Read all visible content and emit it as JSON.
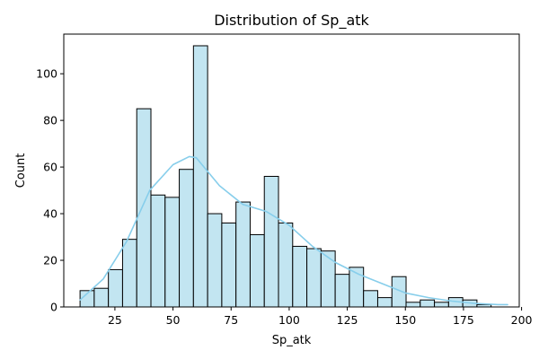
{
  "chart_data": {
    "type": "bar",
    "title": "Distribution of Sp_atk",
    "xlabel": "Sp_atk",
    "ylabel": "Count",
    "xlim": [
      3,
      199
    ],
    "ylim": [
      0,
      117
    ],
    "x_ticks": [
      25,
      50,
      75,
      100,
      125,
      150,
      175,
      200
    ],
    "y_ticks": [
      0,
      20,
      40,
      60,
      80,
      100
    ],
    "bin_start": 10,
    "bin_width": 6.1,
    "values": [
      7,
      8,
      16,
      29,
      85,
      48,
      47,
      59,
      112,
      40,
      36,
      45,
      31,
      56,
      36,
      26,
      25,
      24,
      14,
      17,
      7,
      4,
      13,
      2,
      3,
      2,
      4,
      3,
      1,
      0
    ],
    "kde": {
      "x": [
        10,
        20,
        30,
        40,
        50,
        57,
        60,
        70,
        80,
        90,
        100,
        110,
        120,
        130,
        140,
        150,
        160,
        170,
        180,
        190,
        194
      ],
      "y": [
        3,
        12,
        28,
        50,
        61,
        64.5,
        64,
        52,
        44,
        41,
        35,
        26,
        19,
        14,
        10,
        6,
        4,
        2.5,
        1.5,
        1,
        1
      ]
    },
    "colors": {
      "bar_fill": "#c2e5f1",
      "bar_edge": "#000000",
      "kde_line": "#87ceeb"
    },
    "grid": false,
    "legend": "none"
  }
}
